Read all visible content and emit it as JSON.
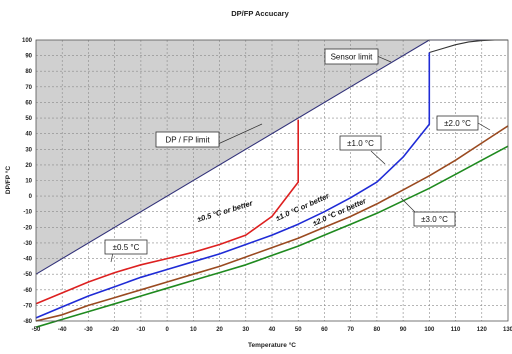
{
  "chart_data": {
    "type": "line",
    "title": "DP/FP Accucary",
    "xlabel": "Temperature °C",
    "ylabel": "DP/FP °C",
    "xlim": [
      -50,
      130
    ],
    "ylim": [
      -80,
      100
    ],
    "x_ticks": [
      -50,
      -40,
      -30,
      -20,
      -10,
      0,
      10,
      20,
      30,
      40,
      50,
      60,
      70,
      80,
      90,
      100,
      110,
      120,
      130
    ],
    "y_ticks": [
      100,
      90,
      80,
      70,
      60,
      50,
      40,
      30,
      20,
      10,
      0,
      -10,
      -20,
      -30,
      -40,
      -50,
      -60,
      -70,
      -80
    ],
    "grid": true,
    "colors": {
      "dp_fp_limit": "#33337a",
      "sensor_limit": "#333333",
      "accuracy_0_5": "#dd2020",
      "accuracy_1_0": "#1f2bd6",
      "accuracy_2_0": "#9a4a20",
      "accuracy_3_0": "#1f8a1f",
      "shaded_region": "#d0d0d0"
    },
    "series": [
      {
        "key": "dp_fp_limit",
        "x": [
          -50,
          100,
          130
        ],
        "y": [
          -50,
          100,
          100
        ]
      },
      {
        "key": "sensor_limit",
        "x": [
          100,
          105,
          110,
          115,
          120,
          125,
          130
        ],
        "y": [
          92,
          94.5,
          97,
          98.8,
          99.6,
          100,
          100
        ]
      },
      {
        "key": "accuracy_0_5",
        "x": [
          -50,
          -40,
          -30,
          -20,
          -10,
          0,
          10,
          20,
          30,
          40,
          50,
          50
        ],
        "y": [
          -69,
          -62,
          -55,
          -49,
          -44,
          -40,
          -36,
          -31,
          -25,
          -13,
          9,
          49
        ]
      },
      {
        "key": "accuracy_1_0",
        "x": [
          -50,
          -40,
          -30,
          -20,
          -10,
          0,
          10,
          20,
          30,
          40,
          50,
          60,
          70,
          80,
          90,
          100,
          100
        ],
        "y": [
          -78,
          -71,
          -64,
          -58,
          -52,
          -47,
          -42,
          -37,
          -31,
          -25,
          -18,
          -10,
          -1,
          9,
          25,
          46,
          92
        ]
      },
      {
        "key": "accuracy_2_0",
        "x": [
          -50,
          -40,
          -30,
          -20,
          -10,
          0,
          10,
          20,
          30,
          40,
          50,
          60,
          70,
          80,
          90,
          100,
          110,
          120,
          130
        ],
        "y": [
          -80,
          -76,
          -70,
          -65,
          -60,
          -55,
          -50,
          -45,
          -39,
          -33,
          -27,
          -20,
          -13,
          -5,
          4,
          13,
          23,
          34,
          45
        ]
      },
      {
        "key": "accuracy_3_0",
        "x": [
          -50,
          -40,
          -30,
          -20,
          -10,
          0,
          10,
          20,
          30,
          40,
          50,
          60,
          70,
          80,
          90,
          100,
          110,
          120,
          130
        ],
        "y": [
          -84,
          -79,
          -74,
          -69,
          -64,
          -59,
          -54,
          -49,
          -44,
          -38,
          -32,
          -25,
          -18,
          -11,
          -3,
          5,
          14,
          23,
          32
        ]
      }
    ],
    "labels": {
      "sensor_limit": "Sensor limit",
      "dp_fp_limit": "DP / FP limit",
      "acc_0_5": "±0.5 °C",
      "acc_1_0": "±1.0 °C",
      "acc_2_0": "±2.0 °C",
      "acc_3_0": "±3.0 °C",
      "better_0_5": "±0.5 °C or better",
      "better_1_0": "±1.0 °C or better",
      "better_2_0": "±2.0 °C or better"
    }
  }
}
